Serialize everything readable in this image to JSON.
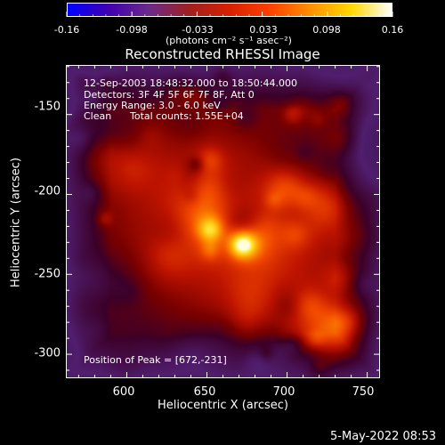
{
  "colorbar": {
    "tick_labels": [
      "-0.16",
      "-0.098",
      "-0.033",
      "0.033",
      "0.098",
      "0.16"
    ],
    "units": "(photons cm⁻² s⁻¹ asec⁻²)",
    "stops": [
      "#0000ff",
      "#3f00b0",
      "#6a2a8a",
      "#a02020",
      "#d82000",
      "#ff4000",
      "#ff9000",
      "#ffd800",
      "#ffffff"
    ]
  },
  "title": "Reconstructed RHESSI Image",
  "annotations": {
    "time_range": "12-Sep-2003 18:48:32.000 to 18:50:44.000",
    "detectors": "Detectors: 3F 4F 5F 6F 7F 8F, Att 0",
    "energy_range": "Energy Range: 3.0 - 6.0 keV",
    "clean_label": "Clean",
    "total_counts": "Total counts: 1.55E+04",
    "peak_position": "Position of Peak = [672,-231]"
  },
  "axes": {
    "x_title": "Heliocentric X (arcsec)",
    "y_title": "Heliocentric Y (arcsec)",
    "x_ticks": [
      "600",
      "650",
      "700",
      "750"
    ],
    "y_ticks": [
      "-150",
      "-200",
      "-250",
      "-300"
    ],
    "x_range": [
      562,
      758
    ],
    "y_range": [
      -315,
      -119
    ]
  },
  "map": {
    "peak_x": 672,
    "peak_y": -231,
    "secondary_peak_x": 652,
    "secondary_peak_y": -222
  },
  "footer": {
    "timestamp": "5-May-2022 08:53"
  }
}
